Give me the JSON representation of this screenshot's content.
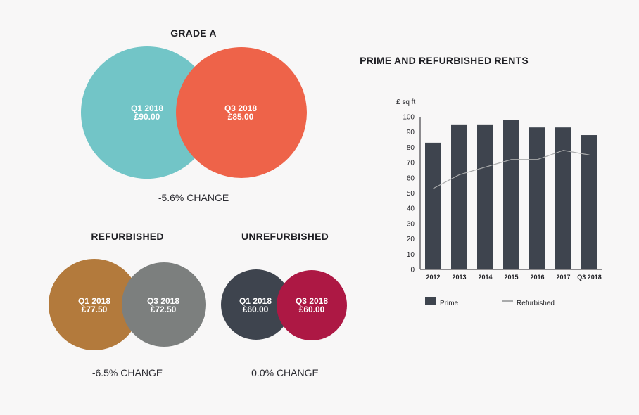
{
  "comparisons": {
    "grade_a": {
      "title": "GRADE A",
      "left": {
        "period": "Q1 2018",
        "value": "£90.00"
      },
      "right": {
        "period": "Q3 2018",
        "value": "£85.00"
      },
      "change": "-5.6% CHANGE",
      "colors": {
        "left": "#72c5c7",
        "right": "#ee6349"
      }
    },
    "refurbished": {
      "title": "REFURBISHED",
      "left": {
        "period": "Q1 2018",
        "value": "£77.50"
      },
      "right": {
        "period": "Q3 2018",
        "value": "£72.50"
      },
      "change": "-6.5% CHANGE",
      "colors": {
        "left": "#b37a3c",
        "right": "#7c7f7e"
      }
    },
    "unrefurbished": {
      "title": "UNREFURBISHED",
      "left": {
        "period": "Q1 2018",
        "value": "£60.00"
      },
      "right": {
        "period": "Q3 2018",
        "value": "£60.00"
      },
      "change": "0.0% CHANGE",
      "colors": {
        "left": "#3e444e",
        "right": "#ad1844"
      }
    }
  },
  "chart_data": {
    "type": "bar",
    "title": "PRIME AND REFURBISHED RENTS",
    "ylabel": "£ sq ft",
    "xlabel": "",
    "ylim": [
      0,
      100
    ],
    "yticks": [
      0,
      10,
      20,
      30,
      40,
      50,
      60,
      70,
      80,
      90,
      100
    ],
    "categories": [
      "2012",
      "2013",
      "2014",
      "2015",
      "2016",
      "2017",
      "Q3 2018"
    ],
    "series": [
      {
        "name": "Prime",
        "type": "bar",
        "color": "#3e444e",
        "values": [
          83,
          95,
          95,
          98,
          93,
          93,
          88
        ]
      },
      {
        "name": "Refurbished",
        "type": "line",
        "color": "#a9aaab",
        "values": [
          53,
          62,
          67,
          72,
          72,
          78,
          75
        ]
      }
    ],
    "legend": [
      "Prime",
      "Refurbished"
    ],
    "grid": false,
    "legend_position": "bottom"
  }
}
